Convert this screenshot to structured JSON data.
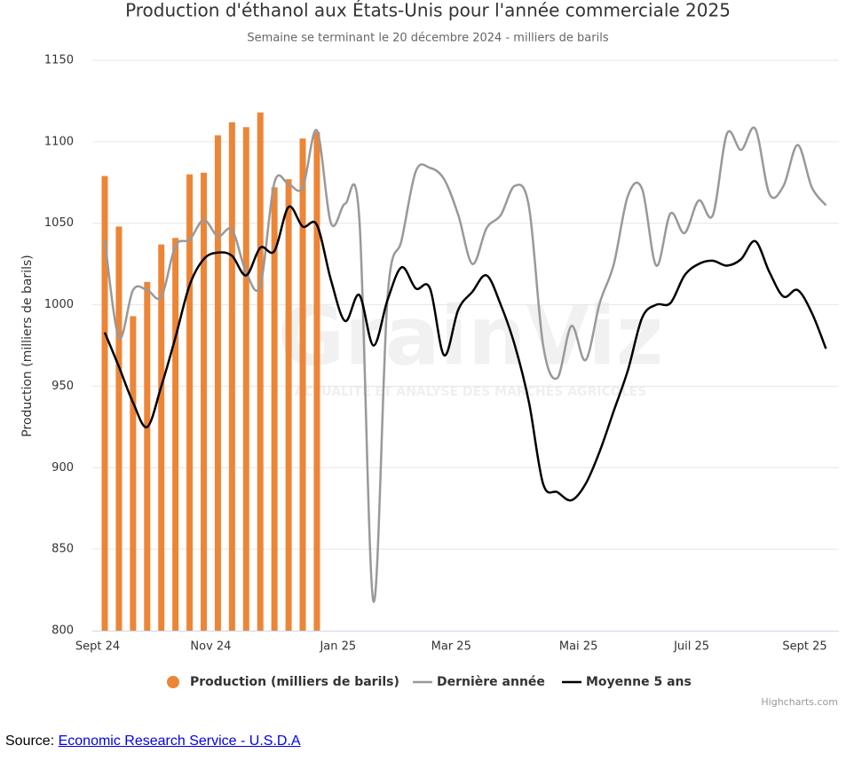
{
  "chart_data": {
    "type": "bar",
    "title": "Production d'éthanol aux États-Unis pour l'année commerciale 2025",
    "subtitle": "Semaine se terminant le 20 décembre 2024 - milliers de barils",
    "y_label": "Production (milliers de barils)",
    "watermark": "GrainViz",
    "watermark_subtitle": "ACTUALITÉ ET ANALYSE DES MARCHÉS AGRICOLES",
    "credits": "Highcharts.com",
    "source_label": "Source:",
    "source_link": "Economic Research Service - U.S.D.A",
    "categories": [
      "Sept 24",
      null,
      null,
      null,
      null,
      null,
      null,
      null,
      "Nov 24",
      null,
      null,
      null,
      null,
      null,
      null,
      null,
      null,
      "Jan 25",
      null,
      null,
      null,
      null,
      null,
      null,
      null,
      "Mar 25",
      null,
      null,
      null,
      null,
      null,
      null,
      null,
      null,
      "Mai 25",
      null,
      null,
      null,
      null,
      null,
      null,
      null,
      "Juil 25",
      null,
      null,
      null,
      null,
      null,
      null,
      null,
      "Sept 25",
      null
    ],
    "ylim": [
      800,
      1150
    ],
    "yticks": [
      800,
      850,
      900,
      950,
      1000,
      1050,
      1100,
      1150
    ],
    "grid": true,
    "legend": "bottom",
    "series": [
      {
        "name": "Production (milliers de barils)",
        "type": "bar",
        "color": "#ed8537",
        "values": [
          1079,
          1048,
          993,
          1014,
          1037,
          1041,
          1080,
          1081,
          1104,
          1112,
          1109,
          1118,
          1072,
          1077,
          1102,
          1106,
          null,
          null,
          null,
          null,
          null,
          null,
          null,
          null,
          null,
          null,
          null,
          null,
          null,
          null,
          null,
          null,
          null,
          null,
          null,
          null,
          null,
          null,
          null,
          null,
          null,
          null,
          null,
          null,
          null,
          null,
          null,
          null,
          null,
          null,
          null,
          null
        ]
      },
      {
        "name": "Dernière année",
        "type": "line",
        "color": "#999999",
        "values": [
          1040,
          980,
          1009,
          1009,
          1005,
          1036,
          1040,
          1052,
          1042,
          1046,
          1020,
          1012,
          1075,
          1074,
          1072,
          1107,
          1050,
          1062,
          1053,
          818,
          1005,
          1040,
          1082,
          1084,
          1077,
          1055,
          1025,
          1047,
          1055,
          1073,
          1060,
          975,
          955,
          987,
          966,
          1001,
          1025,
          1067,
          1071,
          1024,
          1056,
          1044,
          1064,
          1055,
          1105,
          1095,
          1108,
          1068,
          1073,
          1098,
          1072,
          1061
        ]
      },
      {
        "name": "Moyenne 5 ans",
        "type": "line",
        "color": "#000000",
        "values": [
          983,
          962,
          940,
          925,
          950,
          980,
          1012,
          1028,
          1032,
          1030,
          1018,
          1035,
          1033,
          1060,
          1048,
          1049,
          1015,
          990,
          1006,
          975,
          1003,
          1023,
          1010,
          1010,
          969,
          997,
          1008,
          1018,
          1000,
          975,
          940,
          890,
          885,
          880,
          890,
          910,
          935,
          960,
          992,
          1000,
          1001,
          1018,
          1025,
          1027,
          1024,
          1028,
          1039,
          1020,
          1005,
          1009,
          995,
          973
        ]
      }
    ]
  }
}
